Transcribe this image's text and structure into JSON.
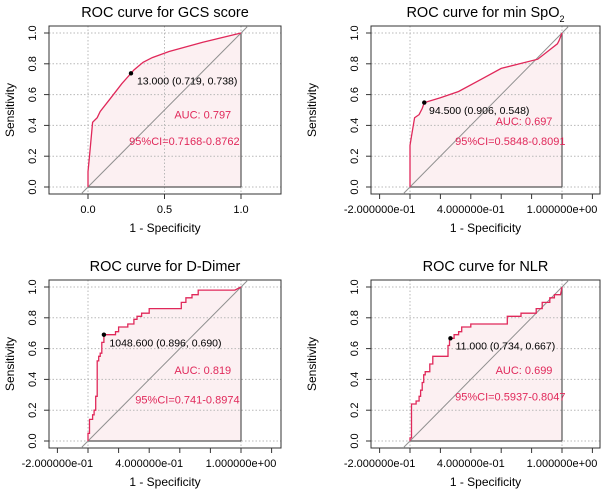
{
  "chart_data": [
    {
      "type": "line",
      "title": "ROC curve for GCS score",
      "title_sub": "",
      "xlabel": "1 - Specificity",
      "ylabel": "Sensitivity",
      "xlim": [
        -0.25,
        1.25
      ],
      "ylim": [
        -0.04,
        1.04
      ],
      "xticks": [
        0.0,
        0.5,
        1.0
      ],
      "xtick_labels": [
        "0.0",
        "0.5",
        "1.0"
      ],
      "yticks": [
        0.0,
        0.2,
        0.4,
        0.6,
        0.8,
        1.0
      ],
      "ytick_labels": [
        "0.0",
        "0.2",
        "0.4",
        "0.6",
        "0.8",
        "1.0"
      ],
      "grid": true,
      "step": false,
      "curve": [
        [
          0,
          0
        ],
        [
          0,
          0.1
        ],
        [
          0.01,
          0.2
        ],
        [
          0.03,
          0.42
        ],
        [
          0.06,
          0.45
        ],
        [
          0.08,
          0.49
        ],
        [
          0.15,
          0.58
        ],
        [
          0.22,
          0.67
        ],
        [
          0.281,
          0.738
        ],
        [
          0.3,
          0.76
        ],
        [
          0.36,
          0.81
        ],
        [
          0.42,
          0.84
        ],
        [
          0.53,
          0.88
        ],
        [
          0.75,
          0.94
        ],
        [
          1,
          1
        ]
      ],
      "threshold_point": {
        "x": 0.281,
        "y": 0.738,
        "label": "13.000 (0.719, 0.738)"
      },
      "auc_label": "AUC: 0.797",
      "ci_label": "95%CI=0.7168-0.8762",
      "auc_pos": [
        0.75,
        0.47
      ],
      "ci_pos": [
        0.63,
        0.3
      ],
      "label_pos": [
        0.32,
        0.69
      ]
    },
    {
      "type": "line",
      "title": "ROC curve for min SpO",
      "title_sub": "2",
      "xlabel": "1 - Specificity",
      "ylabel": "Sensitivity",
      "xlim": [
        -0.25,
        1.25
      ],
      "ylim": [
        -0.04,
        1.04
      ],
      "xticks": [
        -0.2,
        0.0,
        0.2,
        0.4,
        0.6,
        0.8,
        1.0,
        1.2
      ],
      "xtick_labels": [
        "-2.000000e-01",
        "",
        "",
        "4.000000e-01",
        "",
        "",
        "1.000000e+00",
        ""
      ],
      "yticks": [
        0.0,
        0.2,
        0.4,
        0.6,
        0.8,
        1.0
      ],
      "ytick_labels": [
        "0.0",
        "0.2",
        "0.4",
        "0.6",
        "0.8",
        "1.0"
      ],
      "grid": true,
      "step": false,
      "curve": [
        [
          0,
          0
        ],
        [
          0,
          0.27
        ],
        [
          0.01,
          0.33
        ],
        [
          0.03,
          0.45
        ],
        [
          0.06,
          0.47
        ],
        [
          0.08,
          0.51
        ],
        [
          0.094,
          0.548
        ],
        [
          0.2,
          0.58
        ],
        [
          0.32,
          0.62
        ],
        [
          0.47,
          0.7
        ],
        [
          0.6,
          0.77
        ],
        [
          0.84,
          0.83
        ],
        [
          0.97,
          0.93
        ],
        [
          0.98,
          0.95
        ],
        [
          1,
          1
        ]
      ],
      "threshold_point": {
        "x": 0.094,
        "y": 0.548,
        "label": "94.500 (0.906, 0.548)"
      },
      "auc_label": "AUC: 0.697",
      "ci_label": "95%CI=0.5848-0.8091",
      "auc_pos": [
        0.75,
        0.43
      ],
      "ci_pos": [
        0.66,
        0.3
      ],
      "label_pos": [
        0.125,
        0.5
      ]
    },
    {
      "type": "line",
      "title": "ROC curve for D-Dimer",
      "title_sub": "",
      "xlabel": "1 - Specificity",
      "ylabel": "Sensitivity",
      "xlim": [
        -0.25,
        1.25
      ],
      "ylim": [
        -0.04,
        1.04
      ],
      "xticks": [
        -0.2,
        0.0,
        0.2,
        0.4,
        0.6,
        0.8,
        1.0,
        1.2
      ],
      "xtick_labels": [
        "-2.000000e-01",
        "",
        "",
        "4.000000e-01",
        "",
        "",
        "1.000000e+00",
        ""
      ],
      "yticks": [
        0.0,
        0.2,
        0.4,
        0.6,
        0.8,
        1.0
      ],
      "ytick_labels": [
        "0.0",
        "0.2",
        "0.4",
        "0.6",
        "0.8",
        "1.0"
      ],
      "grid": true,
      "step": true,
      "curve": [
        [
          0,
          0
        ],
        [
          0,
          0.05
        ],
        [
          0.01,
          0.05
        ],
        [
          0.01,
          0.14
        ],
        [
          0.03,
          0.14
        ],
        [
          0.03,
          0.17
        ],
        [
          0.04,
          0.17
        ],
        [
          0.04,
          0.2
        ],
        [
          0.05,
          0.2
        ],
        [
          0.05,
          0.29
        ],
        [
          0.06,
          0.29
        ],
        [
          0.06,
          0.52
        ],
        [
          0.07,
          0.52
        ],
        [
          0.07,
          0.55
        ],
        [
          0.08,
          0.55
        ],
        [
          0.08,
          0.57
        ],
        [
          0.09,
          0.57
        ],
        [
          0.09,
          0.64
        ],
        [
          0.104,
          0.64
        ],
        [
          0.104,
          0.69
        ],
        [
          0.18,
          0.69
        ],
        [
          0.18,
          0.71
        ],
        [
          0.2,
          0.71
        ],
        [
          0.2,
          0.74
        ],
        [
          0.26,
          0.74
        ],
        [
          0.26,
          0.76
        ],
        [
          0.3,
          0.76
        ],
        [
          0.3,
          0.79
        ],
        [
          0.32,
          0.79
        ],
        [
          0.32,
          0.81
        ],
        [
          0.35,
          0.81
        ],
        [
          0.35,
          0.83
        ],
        [
          0.4,
          0.83
        ],
        [
          0.4,
          0.86
        ],
        [
          0.61,
          0.86
        ],
        [
          0.61,
          0.9
        ],
        [
          0.64,
          0.9
        ],
        [
          0.64,
          0.93
        ],
        [
          0.68,
          0.93
        ],
        [
          0.68,
          0.95
        ],
        [
          0.72,
          0.95
        ],
        [
          0.72,
          0.98
        ],
        [
          0.96,
          0.98
        ],
        [
          1,
          1
        ]
      ],
      "threshold_point": {
        "x": 0.104,
        "y": 0.69,
        "label": "1048.600 (0.896, 0.690)"
      },
      "auc_label": "AUC: 0.819",
      "ci_label": "95%CI=0.741-0.8974",
      "auc_pos": [
        0.75,
        0.46
      ],
      "ci_pos": [
        0.65,
        0.27
      ],
      "label_pos": [
        0.14,
        0.64
      ]
    },
    {
      "type": "line",
      "title": "ROC curve for NLR",
      "title_sub": "",
      "xlabel": "1 - Specificity",
      "ylabel": "Sensitivity",
      "xlim": [
        -0.25,
        1.25
      ],
      "ylim": [
        -0.04,
        1.04
      ],
      "xticks": [
        -0.2,
        0.0,
        0.2,
        0.4,
        0.6,
        0.8,
        1.0,
        1.2
      ],
      "xtick_labels": [
        "-2.000000e-01",
        "",
        "",
        "4.000000e-01",
        "",
        "",
        "1.000000e+00",
        ""
      ],
      "yticks": [
        0.0,
        0.2,
        0.4,
        0.6,
        0.8,
        1.0
      ],
      "ytick_labels": [
        "0.0",
        "0.2",
        "0.4",
        "0.6",
        "0.8",
        "1.0"
      ],
      "grid": true,
      "step": true,
      "curve": [
        [
          0,
          0
        ],
        [
          0,
          0.02
        ],
        [
          0.01,
          0.02
        ],
        [
          0.01,
          0.24
        ],
        [
          0.04,
          0.24
        ],
        [
          0.04,
          0.26
        ],
        [
          0.06,
          0.26
        ],
        [
          0.06,
          0.29
        ],
        [
          0.07,
          0.29
        ],
        [
          0.07,
          0.33
        ],
        [
          0.08,
          0.33
        ],
        [
          0.08,
          0.38
        ],
        [
          0.09,
          0.38
        ],
        [
          0.09,
          0.43
        ],
        [
          0.1,
          0.43
        ],
        [
          0.1,
          0.45
        ],
        [
          0.13,
          0.45
        ],
        [
          0.13,
          0.5
        ],
        [
          0.15,
          0.5
        ],
        [
          0.15,
          0.55
        ],
        [
          0.25,
          0.55
        ],
        [
          0.25,
          0.62
        ],
        [
          0.26,
          0.62
        ],
        [
          0.26,
          0.667
        ],
        [
          0.29,
          0.667
        ],
        [
          0.29,
          0.69
        ],
        [
          0.32,
          0.69
        ],
        [
          0.32,
          0.71
        ],
        [
          0.34,
          0.71
        ],
        [
          0.34,
          0.74
        ],
        [
          0.4,
          0.74
        ],
        [
          0.4,
          0.76
        ],
        [
          0.64,
          0.76
        ],
        [
          0.64,
          0.81
        ],
        [
          0.73,
          0.81
        ],
        [
          0.73,
          0.83
        ],
        [
          0.83,
          0.83
        ],
        [
          0.83,
          0.86
        ],
        [
          0.87,
          0.86
        ],
        [
          0.87,
          0.9
        ],
        [
          0.92,
          0.9
        ],
        [
          0.92,
          0.93
        ],
        [
          0.95,
          0.93
        ],
        [
          0.95,
          0.95
        ],
        [
          0.99,
          0.95
        ],
        [
          1,
          1
        ]
      ],
      "threshold_point": {
        "x": 0.266,
        "y": 0.667,
        "label": "11.000 (0.734, 0.667)"
      },
      "auc_label": "AUC: 0.699",
      "ci_label": "95%CI=0.5937-0.8047",
      "auc_pos": [
        0.75,
        0.46
      ],
      "ci_pos": [
        0.66,
        0.29
      ],
      "label_pos": [
        0.3,
        0.62
      ]
    }
  ],
  "colors": {
    "curve": "#e0285a",
    "fill": "#fcf0f2",
    "diag": "#909090",
    "grid": "#b8b8b8",
    "axis": "#333333",
    "text": "#000000",
    "accent_text": "#e0285a"
  }
}
